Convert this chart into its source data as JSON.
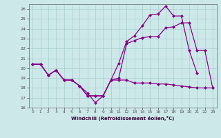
{
  "xlabel": "Windchill (Refroidissement éolien,°C)",
  "bg_color": "#cce8e8",
  "grid_color": "#aacfcf",
  "line_color": "#880088",
  "xlim": [
    -0.5,
    23.5
  ],
  "ylim": [
    16,
    26.5
  ],
  "xticks": [
    0,
    1,
    2,
    3,
    4,
    5,
    6,
    7,
    8,
    9,
    10,
    11,
    12,
    13,
    14,
    15,
    16,
    17,
    18,
    19,
    20,
    21,
    22,
    23
  ],
  "yticks": [
    16,
    17,
    18,
    19,
    20,
    21,
    22,
    23,
    24,
    25,
    26
  ],
  "line1_x": [
    0,
    1,
    2,
    3,
    4,
    5,
    6,
    7,
    8,
    9,
    10,
    11,
    12,
    13,
    14,
    15,
    16,
    17,
    18,
    19,
    20,
    21
  ],
  "line1_y": [
    20.4,
    20.4,
    19.3,
    19.8,
    18.8,
    18.8,
    18.2,
    17.5,
    16.5,
    17.2,
    18.8,
    20.5,
    22.7,
    23.3,
    24.3,
    25.4,
    25.5,
    26.3,
    25.3,
    25.3,
    21.8,
    19.5
  ],
  "line2_x": [
    0,
    1,
    2,
    3,
    4,
    5,
    6,
    7,
    8,
    9,
    10,
    11,
    12,
    13,
    14,
    15,
    16,
    17,
    18,
    19,
    20,
    21,
    22,
    23
  ],
  "line2_y": [
    20.4,
    20.4,
    19.3,
    19.8,
    18.8,
    18.8,
    18.2,
    17.2,
    17.2,
    17.2,
    18.8,
    19.0,
    22.5,
    22.8,
    23.1,
    23.2,
    23.2,
    24.1,
    24.2,
    24.6,
    24.6,
    21.8,
    21.8,
    18.0
  ],
  "line3_x": [
    0,
    1,
    2,
    3,
    4,
    5,
    6,
    7,
    8,
    9,
    10,
    11,
    12,
    13,
    14,
    15,
    16,
    17,
    18,
    19,
    20,
    21,
    22,
    23
  ],
  "line3_y": [
    20.4,
    20.4,
    19.3,
    19.8,
    18.8,
    18.8,
    18.2,
    17.2,
    17.2,
    17.2,
    18.8,
    18.8,
    18.8,
    18.5,
    18.5,
    18.5,
    18.4,
    18.4,
    18.3,
    18.2,
    18.1,
    18.0,
    18.0,
    18.0
  ]
}
